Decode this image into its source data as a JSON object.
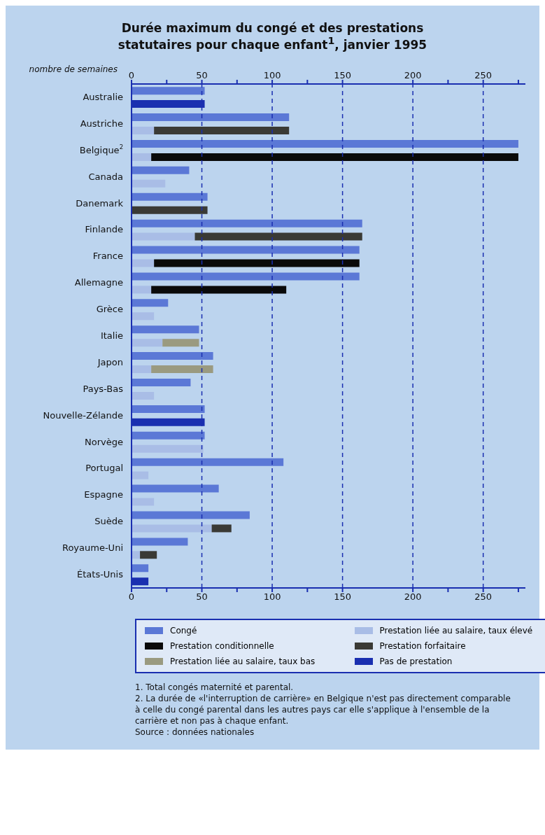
{
  "chart_data": {
    "type": "bar",
    "orientation": "horizontal",
    "stacked": true,
    "title": "Durée maximum du congé et des prestations statutaires pour chaque enfant$^{1}$, janvier 1995",
    "xlabel": "nombre de semaines",
    "categories": [
      "Australie",
      null,
      "Austriche",
      null,
      "Belgique$^{2}$",
      null,
      "Canada",
      null,
      "Danemark",
      null,
      "Finlande",
      null,
      "France",
      null,
      "Allemagne",
      null,
      "Grèce",
      null,
      "Italie",
      null,
      "Japon",
      null,
      "Pays-Bas",
      null,
      "Nouvelle-Zélande",
      null,
      "Norvège",
      null,
      "Portugal",
      null,
      "Espagne",
      null,
      "Suède",
      null,
      "Royaume-Uni",
      null,
      "États-Unis",
      null
    ],
    "series": [
      {
        "name": "Congé",
        "color": "#5b78d6",
        "values": [
          52,
          null,
          112,
          null,
          275,
          null,
          41,
          null,
          54,
          null,
          164,
          null,
          162,
          null,
          162,
          null,
          26,
          null,
          48,
          null,
          58,
          null,
          42,
          null,
          52,
          null,
          52,
          null,
          108,
          null,
          62,
          null,
          84,
          null,
          40,
          null,
          12,
          null
        ]
      },
      {
        "name": "Prestation liée au salaire, taux élevé",
        "color": "#a9bde6",
        "values": [
          null,
          null,
          null,
          16,
          null,
          14,
          null,
          24,
          null,
          null,
          null,
          45,
          null,
          16,
          null,
          14,
          null,
          16,
          null,
          22,
          null,
          14,
          null,
          16,
          null,
          null,
          null,
          51,
          null,
          12,
          null,
          16,
          null,
          57,
          null,
          6,
          null,
          null
        ]
      },
      {
        "name": "Prestation conditionnelle",
        "color": "#0a0a0a",
        "values": [
          null,
          null,
          null,
          null,
          null,
          261,
          null,
          null,
          null,
          null,
          null,
          null,
          null,
          146,
          null,
          96,
          null,
          null,
          null,
          null,
          null,
          null,
          null,
          null,
          null,
          null,
          null,
          null,
          null,
          null,
          null,
          null,
          null,
          null,
          null,
          null,
          null,
          null
        ]
      },
      {
        "name": "Prestation forfaitaire",
        "color": "#3a3a35",
        "values": [
          null,
          null,
          null,
          96,
          null,
          null,
          null,
          null,
          null,
          54,
          null,
          119,
          null,
          null,
          null,
          null,
          null,
          null,
          null,
          null,
          null,
          null,
          null,
          null,
          null,
          null,
          null,
          null,
          null,
          null,
          null,
          null,
          null,
          14,
          null,
          12,
          null,
          null
        ]
      },
      {
        "name": "Prestation liée au salaire, taux bas",
        "color": "#9a9a80",
        "values": [
          null,
          null,
          null,
          null,
          null,
          null,
          null,
          null,
          null,
          null,
          null,
          null,
          null,
          null,
          null,
          null,
          null,
          null,
          null,
          26,
          null,
          44,
          null,
          null,
          null,
          null,
          null,
          null,
          null,
          null,
          null,
          null,
          null,
          null,
          null,
          null,
          null,
          null
        ]
      },
      {
        "name": "Pas de prestation",
        "color": "#1a2fb0",
        "values": [
          null,
          52,
          null,
          null,
          null,
          null,
          null,
          null,
          null,
          null,
          null,
          null,
          null,
          null,
          null,
          null,
          null,
          null,
          null,
          null,
          null,
          null,
          null,
          null,
          null,
          52,
          null,
          null,
          null,
          null,
          null,
          null,
          null,
          null,
          null,
          null,
          null,
          12
        ]
      }
    ],
    "xlim": [
      0,
      280
    ],
    "xticks": [
      0,
      {
        "value": 25,
        "label": null
      },
      50,
      {
        "value": 75,
        "label": null
      },
      100,
      {
        "value": 125,
        "label": null
      },
      150,
      200,
      {
        "value": 225,
        "label": null
      },
      250,
      {
        "value": 275,
        "label": null
      }
    ],
    "x2lim": [
      0,
      280
    ],
    "x2ticks": [
      0,
      {
        "value": 25,
        "label": null
      },
      50,
      {
        "value": 75,
        "label": null
      },
      100,
      {
        "value": 125,
        "label": null
      },
      150,
      200,
      {
        "value": 225,
        "label": null
      },
      250,
      {
        "value": 275,
        "label": null
      }
    ],
    "grid": "x",
    "legend": "bottom",
    "annotations": [
      "1. Total congés maternité et parental.",
      "2. La durée de «l'interruption de carrière» en Belgique n'est pas directement comparable à celle du congé parental dans les autres pays car elle s'applique à l'ensemble de la carrière et non pas à chaque enfant.",
      "Source : données nationales"
    ]
  }
}
